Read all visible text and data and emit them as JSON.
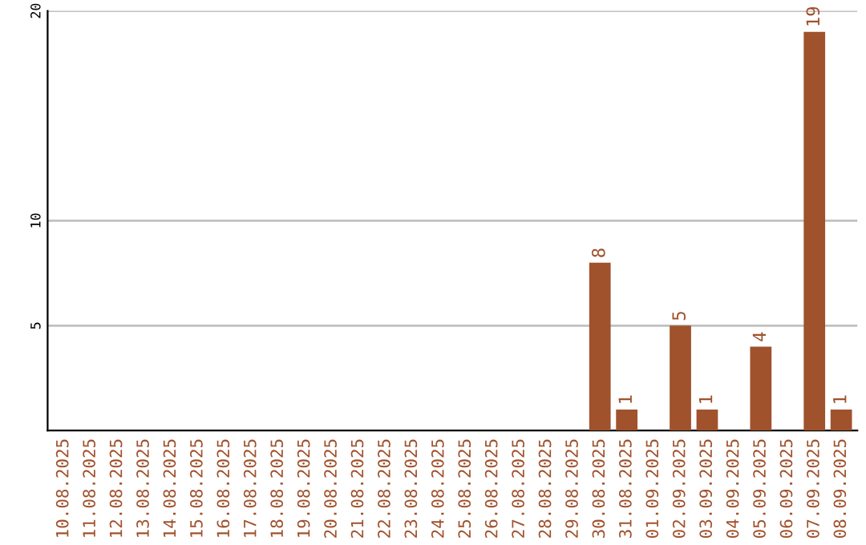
{
  "chart_data": {
    "type": "bar",
    "categories": [
      "10.08.2025",
      "11.08.2025",
      "12.08.2025",
      "13.08.2025",
      "14.08.2025",
      "15.08.2025",
      "16.08.2025",
      "17.08.2025",
      "18.08.2025",
      "19.08.2025",
      "20.08.2025",
      "21.08.2025",
      "22.08.2025",
      "23.08.2025",
      "24.08.2025",
      "25.08.2025",
      "26.08.2025",
      "27.08.2025",
      "28.08.2025",
      "29.08.2025",
      "30.08.2025",
      "31.08.2025",
      "01.09.2025",
      "02.09.2025",
      "03.09.2025",
      "04.09.2025",
      "05.09.2025",
      "06.09.2025",
      "07.09.2025",
      "08.09.2025"
    ],
    "values": [
      0,
      0,
      0,
      0,
      0,
      0,
      0,
      0,
      0,
      0,
      0,
      0,
      0,
      0,
      0,
      0,
      0,
      0,
      0,
      0,
      8,
      1,
      0,
      5,
      1,
      0,
      4,
      0,
      19,
      1
    ],
    "value_labels": [
      null,
      null,
      null,
      null,
      null,
      null,
      null,
      null,
      null,
      null,
      null,
      null,
      null,
      null,
      null,
      null,
      null,
      null,
      null,
      null,
      "8",
      "1",
      null,
      "5",
      "1",
      null,
      "4",
      null,
      "19",
      "1"
    ],
    "color": "#a0522d",
    "ylim": [
      0,
      20
    ],
    "yticks": [
      5,
      10,
      20
    ],
    "grid": "y",
    "legend": false
  }
}
